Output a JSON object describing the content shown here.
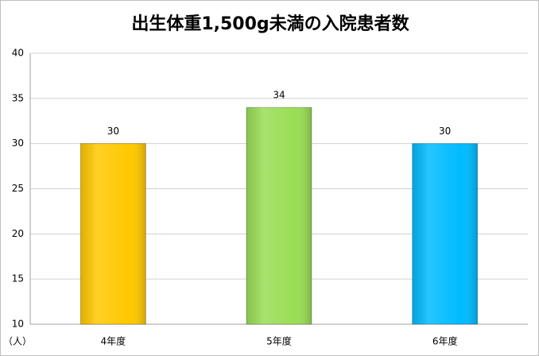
{
  "chart_data": {
    "type": "bar",
    "title": "出生体重1,500g未満の入院患者数",
    "categories": [
      "4年度",
      "5年度",
      "6年度"
    ],
    "values": [
      30,
      34,
      30
    ],
    "colors": [
      "#ffc800",
      "#99dd55",
      "#00bbff"
    ],
    "ylabel": "（人）",
    "ylim": [
      10,
      40
    ],
    "yticks": [
      10,
      15,
      20,
      25,
      30,
      35,
      40
    ],
    "grid": true
  }
}
